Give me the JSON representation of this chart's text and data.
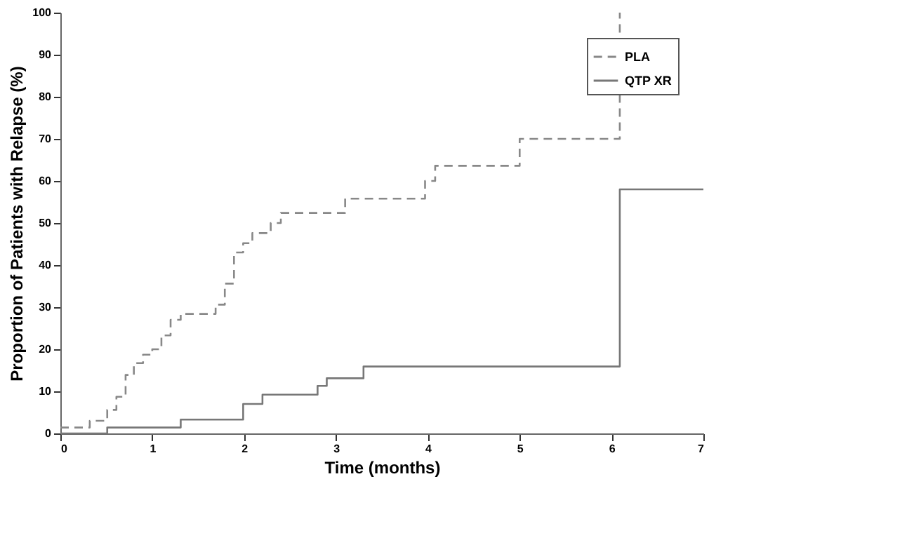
{
  "chart_data": {
    "type": "step",
    "xlabel": "Time (months)",
    "ylabel": "Proportion of Patients with Relapse (%)",
    "xlim": [
      0,
      7
    ],
    "xticks": [
      0,
      1,
      2,
      3,
      4,
      5,
      6,
      7
    ],
    "ylim": [
      0,
      100
    ],
    "yticks": [
      0,
      10,
      20,
      30,
      40,
      50,
      60,
      70,
      80,
      90,
      100
    ],
    "grid": false,
    "legend": "top right",
    "series": [
      {
        "name": "PLA",
        "color": "#888888",
        "line_style": "dashed",
        "x": [
          0,
          0.32,
          0.51,
          0.61,
          0.71,
          0.8,
          0.9,
          1.0,
          1.1,
          1.2,
          1.31,
          1.69,
          1.79,
          1.89,
          1.99,
          2.09,
          2.29,
          2.4,
          3.1,
          3.97,
          4.08,
          5.0,
          6.09
        ],
        "values": [
          1.4,
          3,
          5.6,
          8.7,
          13.9,
          16.7,
          18.7,
          20,
          23.3,
          27,
          28.4,
          30.6,
          35.6,
          43,
          45.2,
          47.6,
          50,
          52.4,
          55.8,
          60,
          63.6,
          70,
          100
        ]
      },
      {
        "name": "QTP XR",
        "color": "#777777",
        "line_style": "solid",
        "x": [
          0,
          0.51,
          1.31,
          1.99,
          2.2,
          2.8,
          2.9,
          3.3,
          6.09,
          7
        ],
        "values": [
          0,
          1.4,
          3.3,
          7,
          9.2,
          11.3,
          13.1,
          15.9,
          58,
          58
        ]
      }
    ]
  }
}
